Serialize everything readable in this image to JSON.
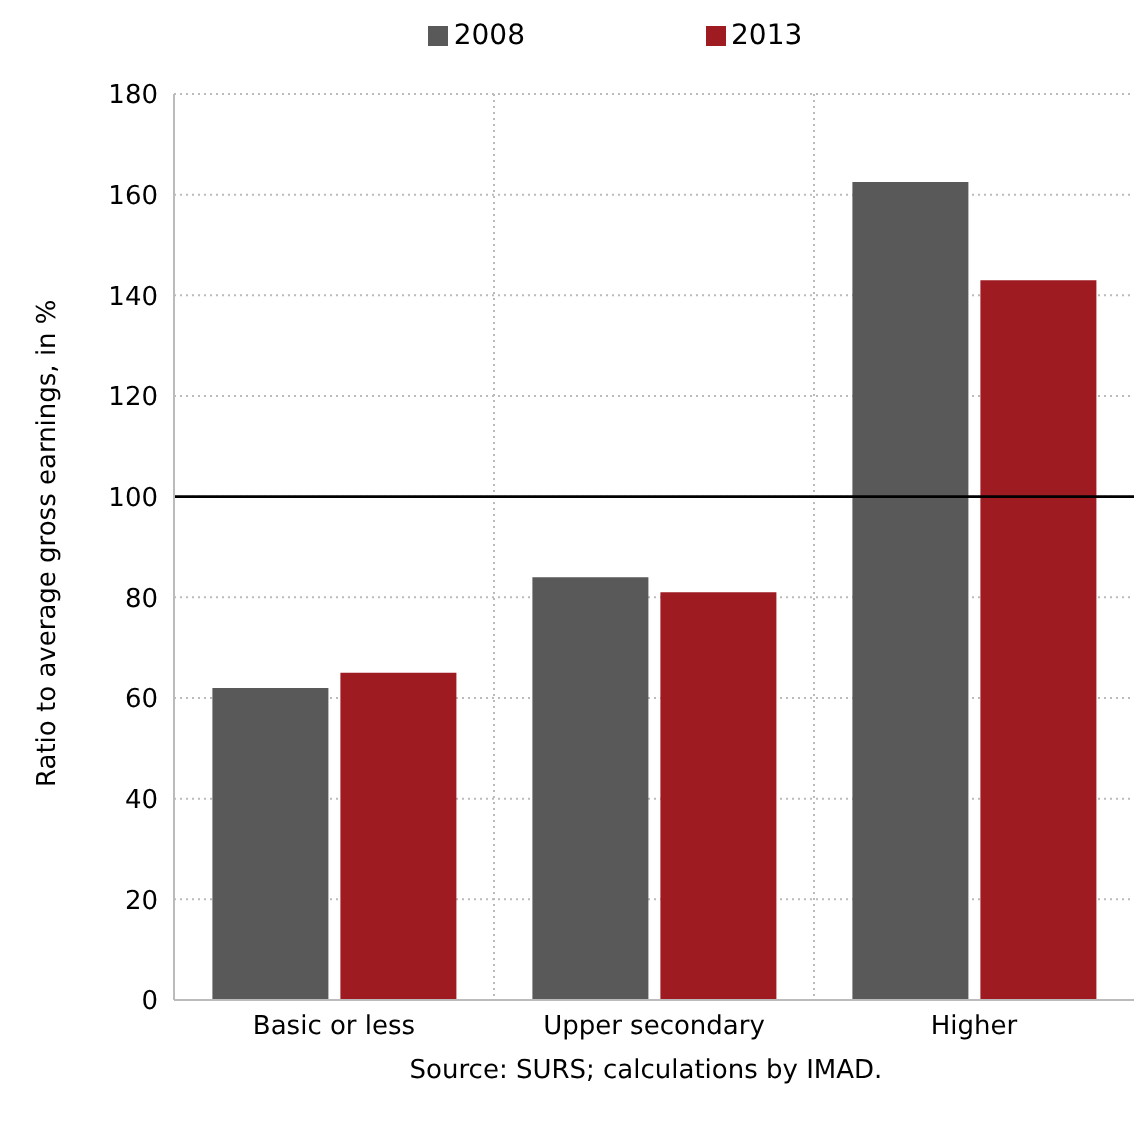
{
  "chart_data": {
    "type": "bar",
    "ylabel": "Ratio to average gross earnings, in %",
    "categories": [
      "Basic or less",
      "Upper secondary",
      "Higher"
    ],
    "series": [
      {
        "name": "2008",
        "color": "#595959",
        "values": [
          62,
          84,
          162.5
        ]
      },
      {
        "name": "2013",
        "color": "#9e1b22",
        "values": [
          65,
          81,
          143
        ]
      }
    ],
    "ylim": [
      0,
      180
    ],
    "yticks": [
      0,
      20,
      40,
      60,
      80,
      100,
      120,
      140,
      160,
      180
    ],
    "grid": true,
    "legend": "top",
    "ref_lines": [
      {
        "axis": "y",
        "value": 100,
        "color": "#000000"
      }
    ],
    "annotations": [
      "Source:  SURS; calculations by IMAD."
    ]
  }
}
